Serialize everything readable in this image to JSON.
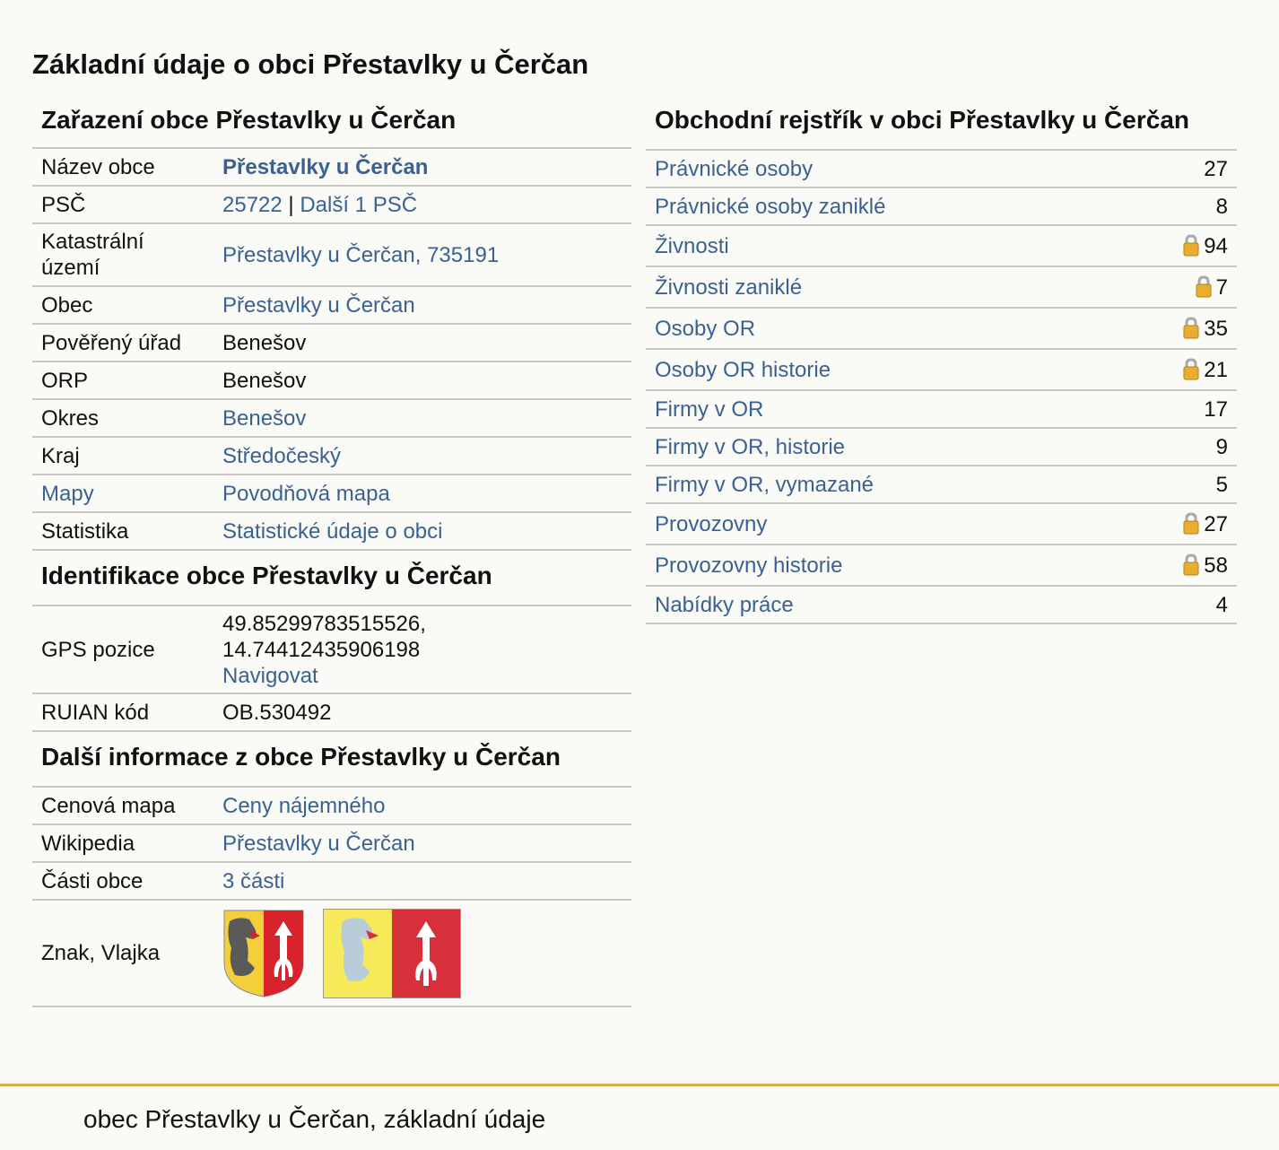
{
  "page": {
    "title": "Základní údaje o obci Přestavlky u Čerčan"
  },
  "classification": {
    "title": "Zařazení obce Přestavlky u Čerčan",
    "rows": {
      "name": {
        "key": "Název obce",
        "value": "Přestavlky u Čerčan"
      },
      "psc": {
        "key": "PSČ",
        "value": "25722",
        "sep": "|",
        "more": "Další 1 PSČ"
      },
      "cadastre": {
        "key": "Katastrální území",
        "value": "Přestavlky u Čerčan, 735191"
      },
      "municipality": {
        "key": "Obec",
        "value": "Přestavlky u Čerčan"
      },
      "office": {
        "key": "Pověřený úřad",
        "value": "Benešov"
      },
      "orp": {
        "key": "ORP",
        "value": "Benešov"
      },
      "district": {
        "key": "Okres",
        "value": "Benešov"
      },
      "region": {
        "key": "Kraj",
        "value": "Středočeský"
      },
      "maps": {
        "key": "Mapy",
        "value": "Povodňová mapa"
      },
      "stats": {
        "key": "Statistika",
        "value": "Statistické údaje o obci"
      }
    }
  },
  "identification": {
    "title": "Identifikace obce Přestavlky u Čerčan",
    "gps": {
      "key": "GPS pozice",
      "lat": "49.85299783515526,",
      "lon": "14.74412435906198",
      "navigate": "Navigovat"
    },
    "ruian": {
      "key": "RUIAN kód",
      "value": "OB.530492"
    }
  },
  "more_info": {
    "title": "Další informace z obce Přestavlky u Čerčan",
    "price_map": {
      "key": "Cenová mapa",
      "value": "Ceny nájemného"
    },
    "wikipedia": {
      "key": "Wikipedia",
      "value": "Přestavlky u Čerčan"
    },
    "parts": {
      "key": "Části obce",
      "value": "3 části"
    },
    "symbols": {
      "key": "Znak, Vlajka"
    }
  },
  "register": {
    "title": "Obchodní rejstřík v obci Přestavlky u Čerčan",
    "rows": [
      {
        "label": "Právnické osoby",
        "count": "27",
        "locked": false
      },
      {
        "label": "Právnické osoby zaniklé",
        "count": "8",
        "locked": false
      },
      {
        "label": "Živnosti",
        "count": "94",
        "locked": true
      },
      {
        "label": "Živnosti zaniklé",
        "count": "7",
        "locked": true
      },
      {
        "label": "Osoby OR",
        "count": "35",
        "locked": true
      },
      {
        "label": "Osoby OR historie",
        "count": "21",
        "locked": true
      },
      {
        "label": "Firmy v OR",
        "count": "17",
        "locked": false
      },
      {
        "label": "Firmy v OR, historie",
        "count": "9",
        "locked": false
      },
      {
        "label": "Firmy v OR, vymazané",
        "count": "5",
        "locked": false
      },
      {
        "label": "Provozovny",
        "count": "27",
        "locked": true
      },
      {
        "label": "Provozovny historie",
        "count": "58",
        "locked": true
      },
      {
        "label": "Nabídky práce",
        "count": "4",
        "locked": false
      }
    ]
  },
  "footer": {
    "text": "obec Přestavlky u Čerčan, základní údaje"
  },
  "colors": {
    "link": "#3a6195",
    "border": "#c9c9c4",
    "footer_line": "#d8b04a",
    "background": "#fafaf6"
  }
}
